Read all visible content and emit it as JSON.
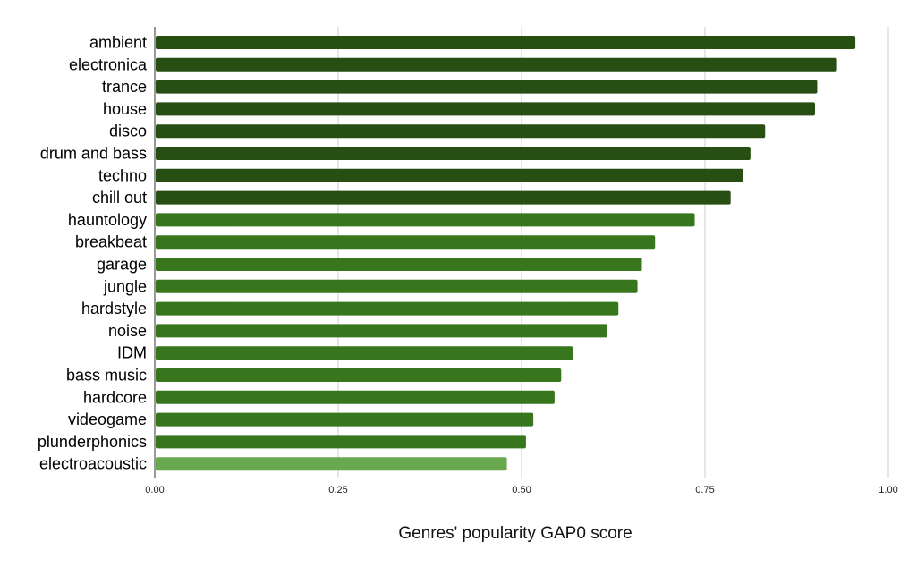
{
  "chart_data": {
    "type": "bar",
    "orientation": "horizontal",
    "categories": [
      "ambient",
      "electronica",
      "trance",
      "house",
      "disco",
      "drum and bass",
      "techno",
      "chill out",
      "hauntology",
      "breakbeat",
      "garage",
      "jungle",
      "hardstyle",
      "noise",
      "IDM",
      "bass music",
      "hardcore",
      "videogame",
      "plunderphonics",
      "electroacoustic"
    ],
    "values": [
      0.955,
      0.93,
      0.903,
      0.9,
      0.832,
      0.812,
      0.802,
      0.785,
      0.736,
      0.682,
      0.664,
      0.658,
      0.632,
      0.617,
      0.57,
      0.554,
      0.545,
      0.516,
      0.506,
      0.48
    ],
    "groups": [
      1,
      1,
      1,
      1,
      1,
      1,
      1,
      1,
      2,
      2,
      2,
      2,
      2,
      2,
      2,
      2,
      2,
      2,
      2,
      3
    ],
    "group_colors": {
      "1": "#274e13",
      "2": "#38761d",
      "3": "#6aa84f"
    },
    "xlabel": "Genres' popularity GAP0 score",
    "ylabel": "",
    "xlim": [
      0,
      1
    ],
    "xticks": [
      "0.00",
      "0.25",
      "0.50",
      "0.75",
      "1.00"
    ],
    "grid": true,
    "legend": "none"
  }
}
